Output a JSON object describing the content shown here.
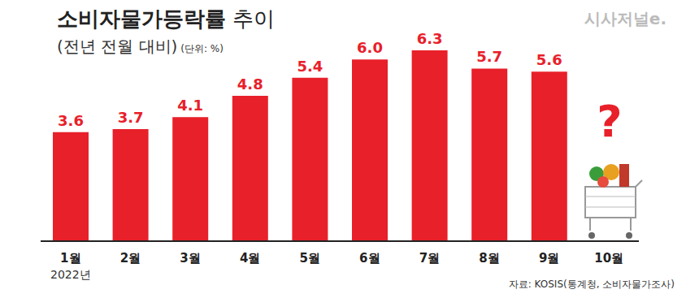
{
  "chart_data": {
    "type": "bar",
    "title": "소비자물가등락률 추이",
    "subtitle": "(전년 전월 대비)",
    "unit_label": "(단위: %)",
    "logo": "시사저널e.",
    "categories": [
      "1월",
      "2월",
      "3월",
      "4월",
      "5월",
      "6월",
      "7월",
      "8월",
      "9월",
      "10월"
    ],
    "year_label": "2022년",
    "values": [
      3.6,
      3.7,
      4.1,
      4.8,
      5.4,
      6.0,
      6.3,
      5.7,
      5.6,
      null
    ],
    "value_labels": [
      "3.6",
      "3.7",
      "4.1",
      "4.8",
      "5.4",
      "6.0",
      "6.3",
      "5.7",
      "5.6",
      null
    ],
    "color": "#e8202a",
    "ylim": [
      0,
      7
    ],
    "tick_labels": "x",
    "data_labels": true,
    "grid": false,
    "annotation": "?",
    "source": "자료: KOSIS(통계청, 소비자물가조사)"
  }
}
